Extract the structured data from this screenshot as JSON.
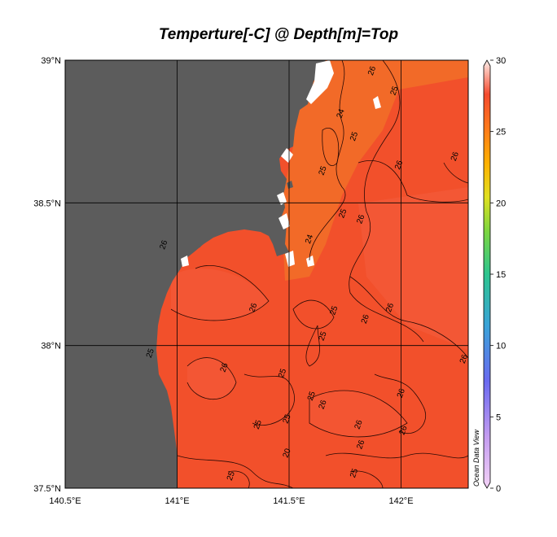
{
  "title": "Temperture[-C] @ Depth[m]=Top",
  "watermark": "Ocean Data View",
  "lon_ticks": [
    {
      "label": "140.5°E",
      "value": 140.5
    },
    {
      "label": "141°E",
      "value": 141.0
    },
    {
      "label": "141.5°E",
      "value": 141.5
    },
    {
      "label": "142°E",
      "value": 142.0
    }
  ],
  "lat_ticks": [
    {
      "label": "39°N",
      "value": 39.0
    },
    {
      "label": "38.5°N",
      "value": 38.5
    },
    {
      "label": "38°N",
      "value": 38.0
    },
    {
      "label": "37.5°N",
      "value": 37.5
    }
  ],
  "colorbar": {
    "ticks": [
      "0",
      "5",
      "10",
      "15",
      "20",
      "25",
      "30"
    ],
    "min": 0,
    "max": 30
  },
  "contour_labels": [
    {
      "text": "26",
      "lon": 141.88,
      "lat": 38.96
    },
    {
      "text": "25",
      "lon": 141.98,
      "lat": 38.89
    },
    {
      "text": "24",
      "lon": 141.74,
      "lat": 38.81
    },
    {
      "text": "25",
      "lon": 141.8,
      "lat": 38.73
    },
    {
      "text": "25",
      "lon": 141.66,
      "lat": 38.61
    },
    {
      "text": "26",
      "lon": 142.0,
      "lat": 38.63
    },
    {
      "text": "26",
      "lon": 142.25,
      "lat": 38.66
    },
    {
      "text": "25",
      "lon": 141.75,
      "lat": 38.46
    },
    {
      "text": "26",
      "lon": 141.83,
      "lat": 38.44
    },
    {
      "text": "24",
      "lon": 141.6,
      "lat": 38.37
    },
    {
      "text": "26",
      "lon": 140.95,
      "lat": 38.35
    },
    {
      "text": "26",
      "lon": 141.35,
      "lat": 38.13
    },
    {
      "text": "25",
      "lon": 141.71,
      "lat": 38.12
    },
    {
      "text": "26",
      "lon": 141.96,
      "lat": 38.13
    },
    {
      "text": "26",
      "lon": 141.85,
      "lat": 38.09
    },
    {
      "text": "25",
      "lon": 141.66,
      "lat": 38.03
    },
    {
      "text": "26",
      "lon": 142.29,
      "lat": 37.95
    },
    {
      "text": "25",
      "lon": 140.89,
      "lat": 37.97
    },
    {
      "text": "26",
      "lon": 141.22,
      "lat": 37.92
    },
    {
      "text": "25",
      "lon": 141.48,
      "lat": 37.9
    },
    {
      "text": "25",
      "lon": 141.61,
      "lat": 37.82
    },
    {
      "text": "26",
      "lon": 141.66,
      "lat": 37.79
    },
    {
      "text": "26",
      "lon": 142.01,
      "lat": 37.83
    },
    {
      "text": "25",
      "lon": 141.5,
      "lat": 37.74
    },
    {
      "text": "25",
      "lon": 141.37,
      "lat": 37.72
    },
    {
      "text": "26",
      "lon": 141.82,
      "lat": 37.72
    },
    {
      "text": "26",
      "lon": 142.02,
      "lat": 37.7
    },
    {
      "text": "26",
      "lon": 141.83,
      "lat": 37.65
    },
    {
      "text": "20",
      "lon": 141.5,
      "lat": 37.62
    },
    {
      "text": "25",
      "lon": 141.8,
      "lat": 37.55
    },
    {
      "text": "25",
      "lon": 141.25,
      "lat": 37.54
    }
  ],
  "colors": {
    "land": "#5c5c5c",
    "sea": "#f2502b",
    "sea_warm": "#f45a3a",
    "sea_cool": "#f26a28",
    "nodata": "#ffffff"
  }
}
